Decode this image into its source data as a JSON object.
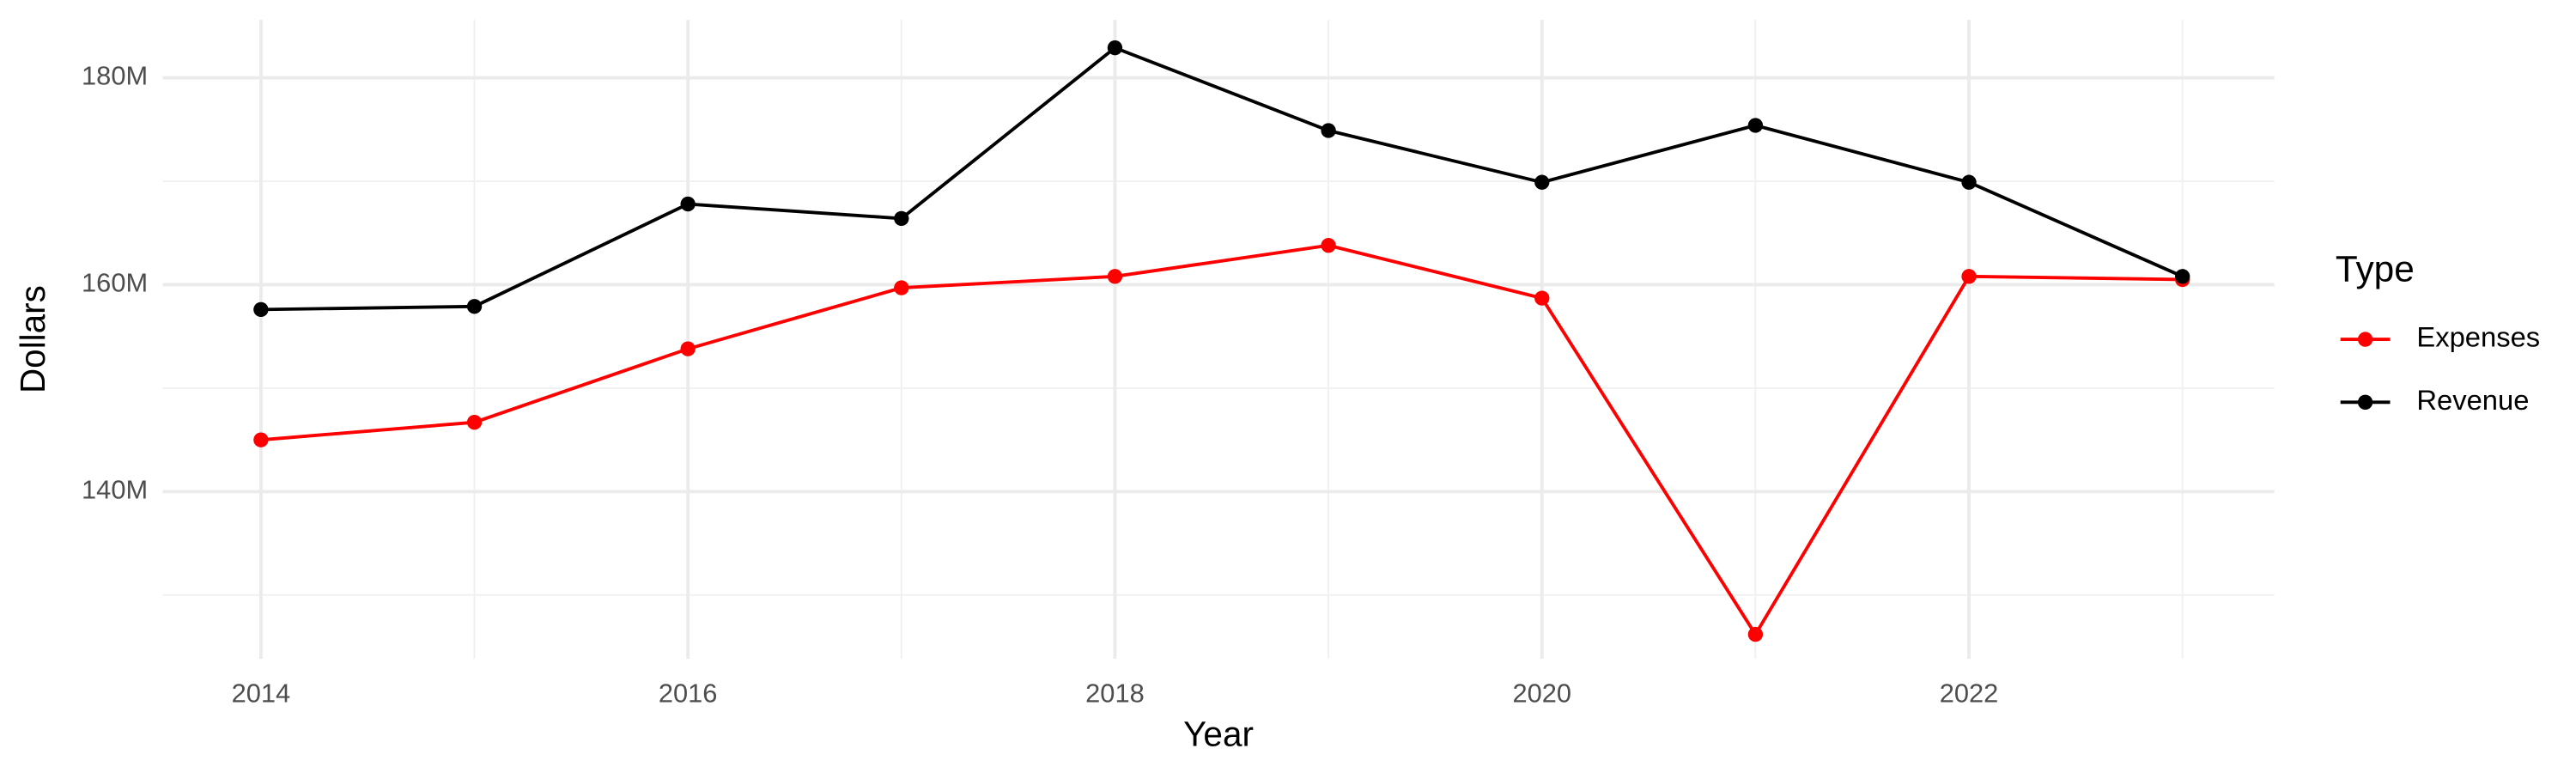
{
  "chart_data": {
    "type": "line",
    "x_label": "Year",
    "y_label": "Dollars",
    "x": [
      2014,
      2015,
      2016,
      2017,
      2018,
      2019,
      2020,
      2021,
      2022,
      2023
    ],
    "series": [
      {
        "name": "Expenses",
        "color": "#ff0000",
        "values": [
          145000000,
          146700000,
          153800000,
          159700000,
          160800000,
          163800000,
          158700000,
          126200000,
          160800000,
          160500000
        ]
      },
      {
        "name": "Revenue",
        "color": "#000000",
        "values": [
          157600000,
          157900000,
          167800000,
          166400000,
          182900000,
          174900000,
          169900000,
          175400000,
          169900000,
          160800000
        ]
      }
    ],
    "xlim": [
      2013.54,
      2023.43
    ],
    "xticks": [
      2014,
      2016,
      2018,
      2020,
      2022
    ],
    "minor_xticks": [
      2015,
      2017,
      2019,
      2021,
      2023
    ],
    "ylim": [
      123840000,
      185600000
    ],
    "yticks": [
      {
        "value": 140000000,
        "label": "140M"
      },
      {
        "value": 160000000,
        "label": "160M"
      },
      {
        "value": 180000000,
        "label": "180M"
      }
    ],
    "minor_yticks": [
      130000000,
      150000000,
      170000000
    ],
    "grid": true,
    "legend_title": "Type",
    "legend_position": "right"
  }
}
